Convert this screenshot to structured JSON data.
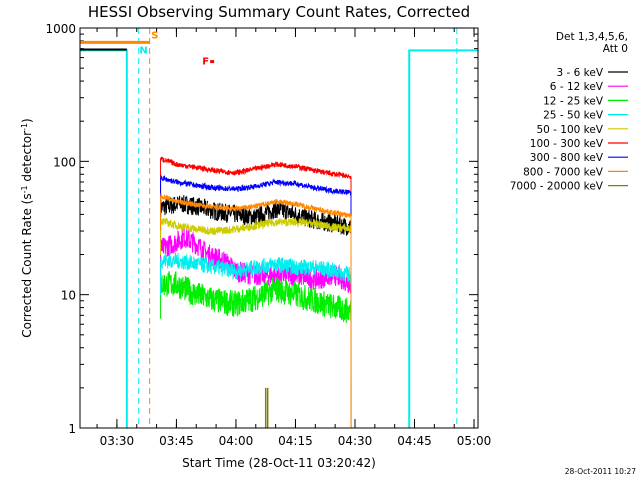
{
  "chart_data": {
    "type": "line",
    "title": "HESSI Observing Summary Count Rates, Corrected",
    "xlabel": "Start Time (28-Oct-11 03:20:42)",
    "ylabel_main": "Corrected Count Rate (s",
    "ylabel_sup1": "-1",
    "ylabel_mid": " detector",
    "ylabel_sup2": "-1",
    "ylabel_end": ")",
    "y_scale": "log",
    "ylim": [
      1,
      1000
    ],
    "xlim": [
      "03:20:42",
      "05:01:00"
    ],
    "x_ticks": [
      "03:30",
      "03:45",
      "04:00",
      "04:15",
      "04:30",
      "04:45",
      "05:00"
    ],
    "y_ticks": [
      "1",
      "10",
      "100",
      "1000"
    ],
    "legend_header": [
      "Det 1,3,4,5,6,",
      "Att 0"
    ],
    "legend_position": "right",
    "series": [
      {
        "name": "3 - 6 keV",
        "color": "#000000",
        "points": [
          [
            "03:41",
            "45"
          ],
          [
            "03:46",
            "48"
          ],
          [
            "03:50",
            "46"
          ],
          [
            "03:55",
            "42"
          ],
          [
            "04:00",
            "40"
          ],
          [
            "04:05",
            "38"
          ],
          [
            "04:10",
            "44"
          ],
          [
            "04:15",
            "40"
          ],
          [
            "04:20",
            "36"
          ],
          [
            "04:25",
            "34"
          ],
          [
            "04:29",
            "32"
          ]
        ],
        "noise": 0.07
      },
      {
        "name": "6 - 12 keV",
        "color": "#ff00ff",
        "points": [
          [
            "03:41",
            "22"
          ],
          [
            "03:44",
            "24"
          ],
          [
            "03:47",
            "27"
          ],
          [
            "03:50",
            "24"
          ],
          [
            "03:53",
            "20"
          ],
          [
            "03:57",
            "18"
          ],
          [
            "04:00",
            "15"
          ],
          [
            "04:05",
            "14"
          ],
          [
            "04:10",
            "14"
          ],
          [
            "04:15",
            "14"
          ],
          [
            "04:20",
            "13"
          ],
          [
            "04:25",
            "14"
          ],
          [
            "04:29",
            "12"
          ]
        ],
        "noise": 0.08
      },
      {
        "name": "12 - 25 keV",
        "color": "#00ee00",
        "points": [
          [
            "03:41",
            "12"
          ],
          [
            "03:45",
            "12"
          ],
          [
            "03:50",
            "10"
          ],
          [
            "03:55",
            "9"
          ],
          [
            "04:00",
            "8.5"
          ],
          [
            "04:05",
            "9.5"
          ],
          [
            "04:10",
            "11"
          ],
          [
            "04:15",
            "10"
          ],
          [
            "04:20",
            "9"
          ],
          [
            "04:25",
            "8"
          ],
          [
            "04:29",
            "7.5"
          ]
        ],
        "noise": 0.1
      },
      {
        "name": "25 - 50 keV",
        "color": "#00eeee",
        "points": [
          [
            "03:41",
            "18"
          ],
          [
            "03:45",
            "18"
          ],
          [
            "03:50",
            "17"
          ],
          [
            "03:55",
            "16"
          ],
          [
            "04:00",
            "15"
          ],
          [
            "04:05",
            "16"
          ],
          [
            "04:10",
            "17"
          ],
          [
            "04:15",
            "16"
          ],
          [
            "04:20",
            "16"
          ],
          [
            "04:25",
            "15"
          ],
          [
            "04:29",
            "14"
          ]
        ],
        "noise": 0.06
      },
      {
        "name": "50 - 100 keV",
        "color": "#cccc00",
        "points": [
          [
            "03:41",
            "36"
          ],
          [
            "03:45",
            "33"
          ],
          [
            "03:50",
            "31"
          ],
          [
            "03:55",
            "30"
          ],
          [
            "04:00",
            "31"
          ],
          [
            "04:05",
            "33"
          ],
          [
            "04:10",
            "35"
          ],
          [
            "04:15",
            "35"
          ],
          [
            "04:20",
            "34"
          ],
          [
            "04:25",
            "32"
          ],
          [
            "04:29",
            "31"
          ]
        ],
        "noise": 0.03
      },
      {
        "name": "100 - 300 keV",
        "color": "#ff0000",
        "points": [
          [
            "03:41",
            "105"
          ],
          [
            "03:45",
            "95"
          ],
          [
            "03:50",
            "90"
          ],
          [
            "03:55",
            "85"
          ],
          [
            "04:00",
            "82"
          ],
          [
            "04:05",
            "88"
          ],
          [
            "04:10",
            "95"
          ],
          [
            "04:15",
            "92"
          ],
          [
            "04:20",
            "85"
          ],
          [
            "04:25",
            "80"
          ],
          [
            "04:29",
            "77"
          ]
        ],
        "noise": 0.02
      },
      {
        "name": "300 - 800 keV",
        "color": "#0000ff",
        "points": [
          [
            "03:41",
            "75"
          ],
          [
            "03:45",
            "70"
          ],
          [
            "03:50",
            "66"
          ],
          [
            "03:55",
            "63"
          ],
          [
            "04:00",
            "62"
          ],
          [
            "04:05",
            "65"
          ],
          [
            "04:10",
            "70"
          ],
          [
            "04:15",
            "68"
          ],
          [
            "04:20",
            "63"
          ],
          [
            "04:25",
            "60"
          ],
          [
            "04:29",
            "58"
          ]
        ],
        "noise": 0.02
      },
      {
        "name": "800 - 7000 keV",
        "color": "#ff8800",
        "points": [
          [
            "03:41",
            "55"
          ],
          [
            "03:45",
            "50"
          ],
          [
            "03:50",
            "47"
          ],
          [
            "03:55",
            "45"
          ],
          [
            "04:00",
            "44"
          ],
          [
            "04:05",
            "46"
          ],
          [
            "04:10",
            "50"
          ],
          [
            "04:15",
            "48"
          ],
          [
            "04:20",
            "44"
          ],
          [
            "04:25",
            "41"
          ],
          [
            "04:29",
            "39"
          ]
        ],
        "noise": 0.02
      },
      {
        "name": "7000 - 20000 keV",
        "color": "#808000",
        "points": [],
        "noise": 0
      }
    ],
    "data_gap_segments": [
      {
        "name": "25 - 50 keV",
        "color": "#00eeee",
        "points": [
          [
            "03:20:42",
            "680"
          ],
          [
            "03:32:30",
            "680"
          ],
          [
            "03:32:30",
            "1"
          ]
        ]
      },
      {
        "name": "25 - 50 keV",
        "color": "#00eeee",
        "points": [
          [
            "04:43:40",
            "1"
          ],
          [
            "04:43:40",
            "680"
          ],
          [
            "05:01:00",
            "680"
          ]
        ]
      },
      {
        "name": "3 - 6 keV",
        "color": "#000000",
        "points": [
          [
            "03:20:42",
            "690"
          ],
          [
            "03:32:30",
            "690"
          ]
        ]
      }
    ],
    "dashed_markers": [
      {
        "color": "#00eeee",
        "time": "03:35:30"
      },
      {
        "color": "#00eeee",
        "time": "04:55:40"
      },
      {
        "color": "#ff8800",
        "time": "03:38:15"
      }
    ],
    "annotations": [
      {
        "text": "S",
        "color": "#ff8800",
        "time": "03:38:40",
        "value": "880"
      },
      {
        "text": "N",
        "color": "#00eeee",
        "time": "03:35:40",
        "value": "680"
      },
      {
        "text": "F",
        "color": "#ff0000",
        "time": "03:51:30",
        "value": "560"
      }
    ],
    "flag_bars": [
      {
        "color": "#ff8800",
        "from": "03:20:42",
        "to": "03:38:15",
        "value": "780"
      },
      {
        "color": "#ff0000",
        "from": "03:53:30",
        "to": "03:54:30",
        "value": "560"
      }
    ],
    "footer_timestamp": "28-Oct-2011 10:27"
  }
}
